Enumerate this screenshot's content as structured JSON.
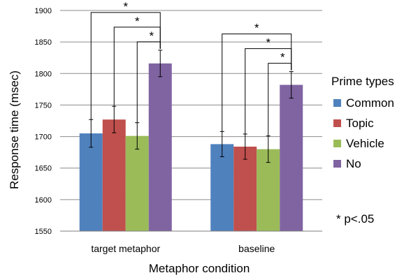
{
  "chart_data": {
    "type": "bar",
    "title": "",
    "xlabel": "Metaphor condition",
    "ylabel": "Response time (msec)",
    "ylim": [
      1550,
      1900
    ],
    "yticks": [
      1550,
      1600,
      1650,
      1700,
      1750,
      1800,
      1850,
      1900
    ],
    "grid": true,
    "legend_title": "Prime types",
    "legend_position": "right",
    "categories": [
      "target metaphor",
      "baseline"
    ],
    "series": [
      {
        "name": "Common",
        "color": "#4f81bd",
        "values": [
          1705,
          1688
        ],
        "error": [
          22,
          20
        ]
      },
      {
        "name": "Topic",
        "color": "#c0504d",
        "values": [
          1727,
          1684
        ],
        "error": [
          21,
          20
        ]
      },
      {
        "name": "Vehicle",
        "color": "#9bbb59",
        "values": [
          1701,
          1680
        ],
        "error": [
          21,
          21
        ]
      },
      {
        "name": "No",
        "color": "#8064a2",
        "values": [
          1816,
          1782
        ],
        "error": [
          21,
          21
        ]
      }
    ],
    "significance": [
      {
        "category": 0,
        "from_series": 0,
        "to_series": 3,
        "label": "*"
      },
      {
        "category": 0,
        "from_series": 1,
        "to_series": 3,
        "label": "*"
      },
      {
        "category": 0,
        "from_series": 2,
        "to_series": 3,
        "label": "*"
      },
      {
        "category": 1,
        "from_series": 0,
        "to_series": 3,
        "label": "*"
      },
      {
        "category": 1,
        "from_series": 1,
        "to_series": 3,
        "label": "*"
      },
      {
        "category": 1,
        "from_series": 2,
        "to_series": 3,
        "label": "*"
      }
    ],
    "note": "* p<.05"
  }
}
